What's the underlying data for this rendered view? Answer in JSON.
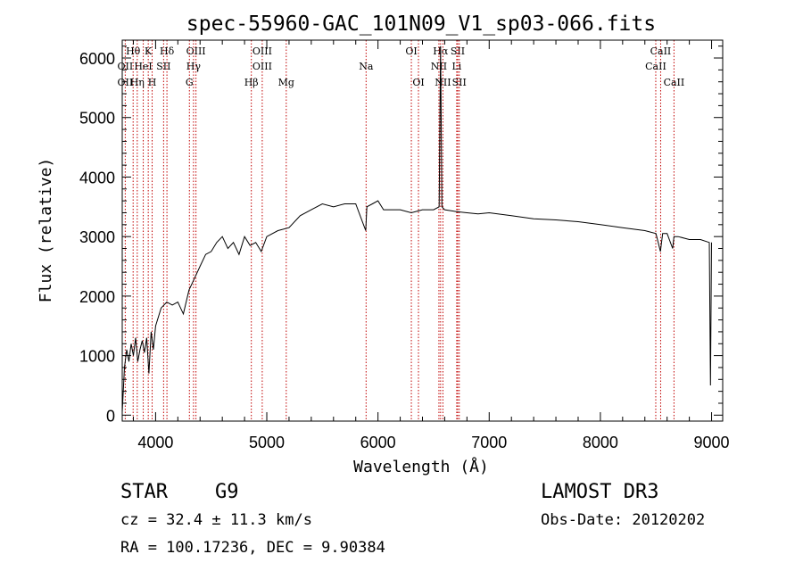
{
  "chart_data": {
    "type": "line",
    "title": "spec-55960-GAC_101N09_V1_sp03-066.fits",
    "xlabel": "Wavelength (Å)",
    "ylabel": "Flux (relative)",
    "xlim": [
      3700,
      9100
    ],
    "ylim": [
      -100,
      6300
    ],
    "x_ticks": [
      4000,
      5000,
      6000,
      7000,
      8000,
      9000
    ],
    "y_ticks": [
      0,
      1000,
      2000,
      3000,
      4000,
      5000,
      6000
    ],
    "x_tick_labels": [
      "4000",
      "5000",
      "6000",
      "7000",
      "8000",
      "9000"
    ],
    "y_tick_labels": [
      "0",
      "1000",
      "2000",
      "3000",
      "4000",
      "5000",
      "6000"
    ],
    "spectrum": {
      "x": [
        3700,
        3720,
        3740,
        3760,
        3780,
        3800,
        3820,
        3840,
        3860,
        3880,
        3900,
        3920,
        3940,
        3960,
        3980,
        4000,
        4050,
        4100,
        4150,
        4200,
        4250,
        4300,
        4350,
        4400,
        4450,
        4500,
        4550,
        4600,
        4650,
        4700,
        4750,
        4800,
        4850,
        4900,
        4950,
        5000,
        5100,
        5200,
        5300,
        5400,
        5500,
        5600,
        5700,
        5800,
        5890,
        5900,
        5950,
        6000,
        6050,
        6100,
        6200,
        6300,
        6400,
        6500,
        6550,
        6563,
        6575,
        6600,
        6700,
        6800,
        6900,
        7000,
        7200,
        7400,
        7600,
        7800,
        8000,
        8200,
        8400,
        8500,
        8540,
        8560,
        8600,
        8650,
        8662,
        8700,
        8800,
        8900,
        8980,
        8990,
        9000
      ],
      "y": [
        50,
        800,
        1100,
        900,
        1200,
        1000,
        1300,
        900,
        1100,
        1250,
        1050,
        1300,
        700,
        1400,
        1100,
        1500,
        1800,
        1900,
        1850,
        1900,
        1700,
        2100,
        2300,
        2500,
        2700,
        2750,
        2900,
        3000,
        2800,
        2900,
        2700,
        3000,
        2850,
        2900,
        2750,
        3000,
        3100,
        3150,
        3350,
        3450,
        3550,
        3500,
        3550,
        3550,
        3100,
        3500,
        3550,
        3600,
        3450,
        3450,
        3450,
        3400,
        3450,
        3450,
        3500,
        6200,
        3500,
        3450,
        3420,
        3400,
        3380,
        3400,
        3350,
        3300,
        3280,
        3250,
        3200,
        3150,
        3100,
        3050,
        2750,
        3050,
        3050,
        2800,
        3000,
        3000,
        2950,
        2950,
        2900,
        500,
        2900
      ]
    },
    "line_markers": [
      {
        "name": "Hθ",
        "x": 3798,
        "row": 1
      },
      {
        "name": "OII",
        "x": 3727,
        "row": 2
      },
      {
        "name": "OII",
        "x": 3727,
        "row": 3
      },
      {
        "name": "K",
        "x": 3934,
        "row": 1
      },
      {
        "name": "HeI",
        "x": 3889,
        "row": 2
      },
      {
        "name": "Hη",
        "x": 3835,
        "row": 3
      },
      {
        "name": "Hδ",
        "x": 4102,
        "row": 1
      },
      {
        "name": "SII",
        "x": 4072,
        "row": 2
      },
      {
        "name": "H",
        "x": 3969,
        "row": 3
      },
      {
        "name": "OIII",
        "x": 4363,
        "row": 1
      },
      {
        "name": "Hγ",
        "x": 4341,
        "row": 2
      },
      {
        "name": "G",
        "x": 4304,
        "row": 3
      },
      {
        "name": "OIII",
        "x": 4959,
        "row": 1
      },
      {
        "name": "OIII",
        "x": 4959,
        "row": 2
      },
      {
        "name": "Hβ",
        "x": 4861,
        "row": 3
      },
      {
        "name": "Mg",
        "x": 5175,
        "row": 3
      },
      {
        "name": "Na",
        "x": 5893,
        "row": 2
      },
      {
        "name": "OI",
        "x": 6300,
        "row": 1
      },
      {
        "name": "OI",
        "x": 6364,
        "row": 3
      },
      {
        "name": "Hα",
        "x": 6563,
        "row": 1
      },
      {
        "name": "SII",
        "x": 6717,
        "row": 1
      },
      {
        "name": "NII",
        "x": 6548,
        "row": 2
      },
      {
        "name": "Li",
        "x": 6708,
        "row": 2
      },
      {
        "name": "NII",
        "x": 6584,
        "row": 3
      },
      {
        "name": "SII",
        "x": 6731,
        "row": 3
      },
      {
        "name": "CaII",
        "x": 8542,
        "row": 1
      },
      {
        "name": "CaII",
        "x": 8498,
        "row": 2
      },
      {
        "name": "CaII",
        "x": 8662,
        "row": 3
      }
    ],
    "colors": {
      "spectrum": "#000000",
      "markers": "#c00000",
      "axes": "#000000"
    }
  },
  "info": {
    "object_type": "STAR",
    "subclass": "G9",
    "survey": "LAMOST DR3",
    "cz": "cz = 32.4 ± 11.3 km/s",
    "obs_date": "Obs-Date: 20120202",
    "radec": "RA = 100.17236, DEC =    9.90384"
  }
}
